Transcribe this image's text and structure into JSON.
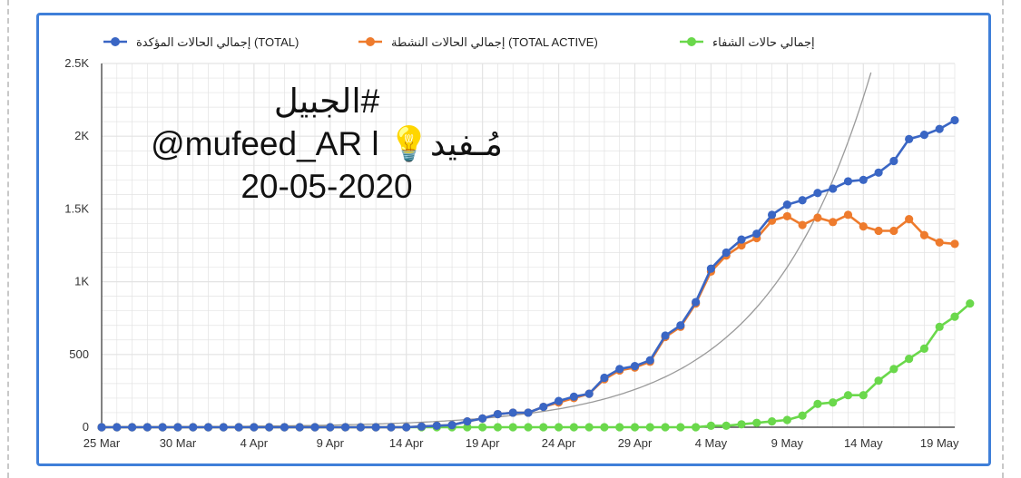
{
  "overlay": {
    "line1": "#الجبيل",
    "line2": "@mufeed_AR l 💡مُـفيد",
    "line3": "20-05-2020"
  },
  "colors": {
    "total": "#3a66c4",
    "active": "#ee7b2d",
    "recovered": "#6ad84b",
    "trend": "#9a9a9a",
    "frame": "#3f7fd9",
    "grid": "#e3e3e3"
  },
  "chart_data": {
    "type": "line",
    "title": "",
    "xlabel": "",
    "ylabel": "",
    "ylim": [
      0,
      2500
    ],
    "y_ticks": [
      0,
      500,
      1000,
      1500,
      2000,
      2500
    ],
    "y_tick_labels": [
      "0",
      "500",
      "1K",
      "1.5K",
      "2K",
      "2.5K"
    ],
    "x_tick_labels": [
      "25 Mar",
      "30 Mar",
      "4 Apr",
      "9 Apr",
      "14 Apr",
      "19 Apr",
      "24 Apr",
      "29 Apr",
      "4 May",
      "9 May",
      "14 May",
      "19 May"
    ],
    "x_start": "2020-03-25",
    "x_end": "2020-05-19",
    "legend_position": "top",
    "grid": true,
    "series": [
      {
        "name": "إجمالي الحالات المؤكدة (TOTAL)",
        "color_key": "total",
        "values": [
          0,
          0,
          0,
          0,
          0,
          0,
          0,
          0,
          0,
          0,
          0,
          0,
          0,
          0,
          0,
          0,
          0,
          0,
          0,
          0,
          0,
          5,
          10,
          15,
          40,
          60,
          90,
          100,
          100,
          140,
          180,
          210,
          230,
          340,
          400,
          420,
          460,
          630,
          700,
          860,
          1090,
          1200,
          1290,
          1330,
          1460,
          1530,
          1560,
          1610,
          1640,
          1690,
          1700,
          1750,
          1830,
          1980,
          2010,
          2050,
          2110
        ]
      },
      {
        "name": "إجمالي الحالات النشطة (TOTAL ACTIVE)",
        "color_key": "active",
        "values": [
          0,
          0,
          0,
          0,
          0,
          0,
          0,
          0,
          0,
          0,
          0,
          0,
          0,
          0,
          0,
          0,
          0,
          0,
          0,
          0,
          0,
          5,
          10,
          15,
          40,
          60,
          90,
          100,
          100,
          140,
          170,
          200,
          230,
          330,
          390,
          410,
          450,
          620,
          690,
          850,
          1070,
          1180,
          1250,
          1300,
          1420,
          1450,
          1390,
          1440,
          1410,
          1460,
          1380,
          1350,
          1350,
          1430,
          1320,
          1270,
          1260
        ]
      },
      {
        "name": "إجمالي حالات الشفاء",
        "color_key": "recovered",
        "values": [
          0,
          0,
          0,
          0,
          0,
          0,
          0,
          0,
          0,
          0,
          0,
          0,
          0,
          0,
          0,
          0,
          0,
          0,
          0,
          0,
          0,
          0,
          0,
          0,
          0,
          0,
          0,
          0,
          0,
          0,
          0,
          0,
          0,
          0,
          0,
          0,
          0,
          0,
          0,
          0,
          10,
          10,
          20,
          30,
          40,
          50,
          80,
          160,
          170,
          220,
          220,
          320,
          400,
          470,
          540,
          690,
          760,
          850
        ]
      }
    ],
    "trendline": {
      "type": "exponential",
      "style": "thin gray"
    }
  }
}
